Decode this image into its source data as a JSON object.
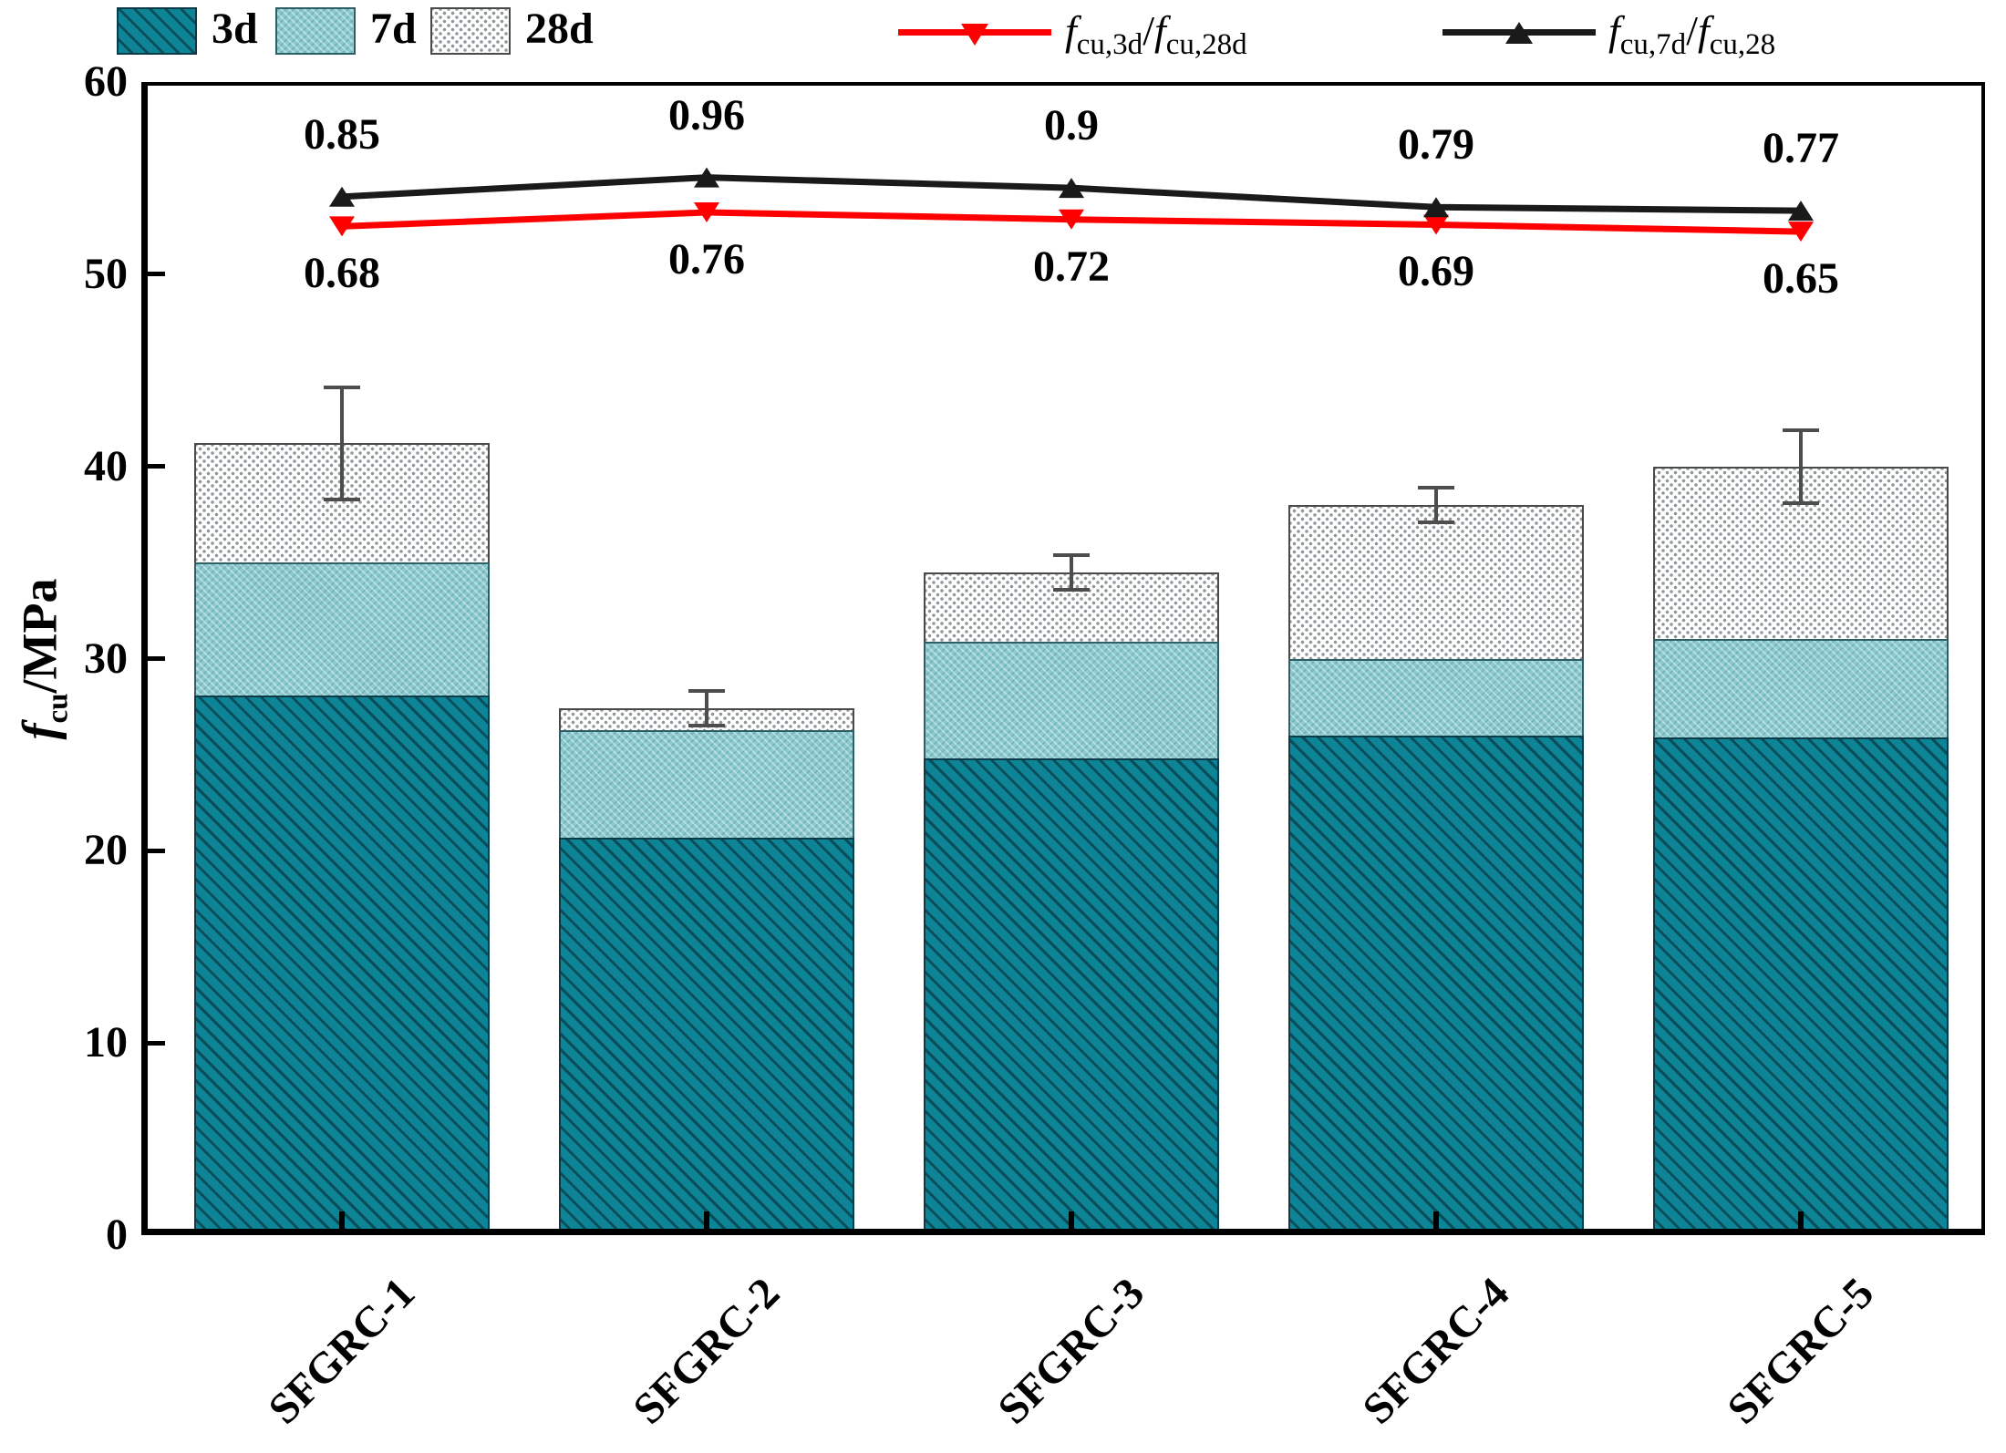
{
  "legend": {
    "bars": [
      {
        "label": "3d"
      },
      {
        "label": "7d"
      },
      {
        "label": "28d"
      }
    ],
    "lines": [
      {
        "f1": "f",
        "sub1": "cu,3d",
        "slash": "/",
        "f2": "f",
        "sub2": "cu,28d"
      },
      {
        "f1": "f",
        "sub1": "cu,7d",
        "slash": "/",
        "f2": "f",
        "sub2": "cu,28"
      }
    ]
  },
  "y_axis": {
    "label_f": "f",
    "label_sub": "cu",
    "label_rest": "/MPa"
  },
  "chart_data": {
    "type": "bar+line",
    "categories": [
      "SFGRC-1",
      "SFGRC-2",
      "SFGRC-3",
      "SFGRC-4",
      "SFGRC-5"
    ],
    "bar_series": [
      {
        "name": "3d",
        "values": [
          28.1,
          20.7,
          24.8,
          26.0,
          25.9
        ],
        "color": "#0e8596",
        "pattern": "diagonal-hatch"
      },
      {
        "name": "7d",
        "values": [
          35.0,
          26.3,
          30.9,
          30.0,
          31.0
        ],
        "color": "#8bcad0",
        "pattern": "fine-check"
      },
      {
        "name": "28d",
        "values": [
          41.2,
          27.4,
          34.5,
          38.0,
          40.0
        ],
        "color": "#ffffff",
        "pattern": "dot-lattice",
        "error_bars": [
          3.0,
          1.0,
          1.0,
          1.0,
          2.0
        ]
      }
    ],
    "line_series": [
      {
        "name": "fcu,3d/fcu,28d",
        "values": [
          0.68,
          0.76,
          0.72,
          0.69,
          0.65
        ],
        "labels": [
          "0.68",
          "0.76",
          "0.72",
          "0.69",
          "0.65"
        ],
        "color": "#ff0000",
        "marker": "triangle-down",
        "label_position": "below"
      },
      {
        "name": "fcu,7d/fcu,28",
        "values": [
          0.85,
          0.96,
          0.9,
          0.79,
          0.77
        ],
        "labels": [
          "0.85",
          "0.96",
          "0.9",
          "0.79",
          "0.77"
        ],
        "color": "#1a1a1a",
        "marker": "triangle-up",
        "label_position": "above"
      }
    ],
    "ylabel": "fcu/MPa",
    "ylim": [
      0,
      60
    ],
    "yticks": [
      0,
      10,
      20,
      30,
      40,
      50,
      60
    ],
    "grid": false,
    "legend_position": "top",
    "ratio_to_mpa": {
      "slope": 9.1,
      "offset": 46.3
    },
    "bar_mode": "overlay",
    "error_color": "#4d4d4d",
    "axis_color": "#000000"
  }
}
